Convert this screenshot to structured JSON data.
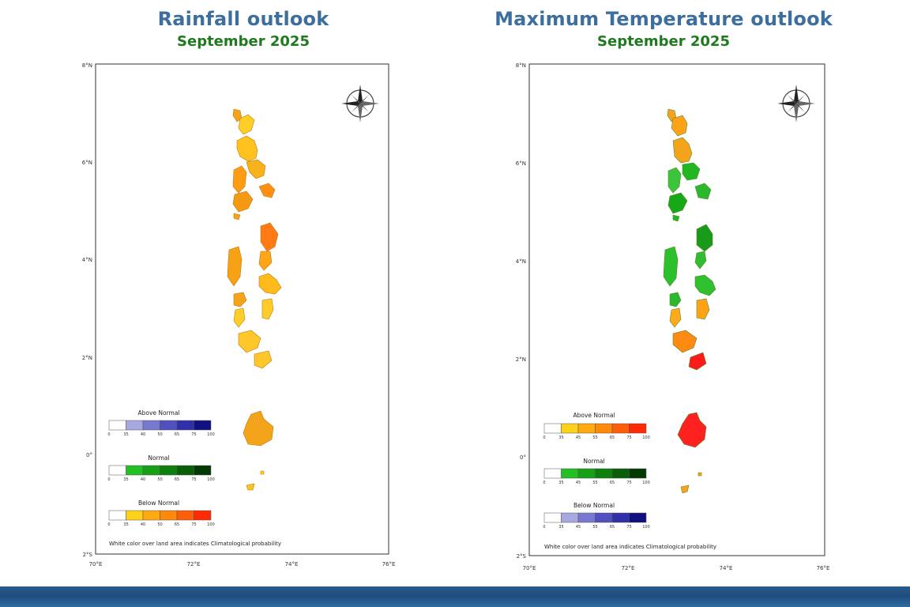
{
  "panels": [
    {
      "title": "Rainfall outlook",
      "subtitle": "September 2025",
      "lat_ticks": [
        "8°N",
        "6°N",
        "4°N",
        "2°N",
        "0°",
        "2°S"
      ],
      "lon_ticks": [
        "70°E",
        "72°E",
        "74°E",
        "76°E"
      ],
      "legends": [
        {
          "title": "Above Normal",
          "colors": [
            "#ffffff",
            "#a8a8e0",
            "#7878d0",
            "#5050bf",
            "#3030a8",
            "#101080"
          ],
          "ticks": [
            "0",
            "35",
            "40",
            "50",
            "65",
            "75",
            "100"
          ]
        },
        {
          "title": "Normal",
          "colors": [
            "#ffffff",
            "#22c022",
            "#16a016",
            "#0d7f0d",
            "#085f08",
            "#033a03"
          ],
          "ticks": [
            "0",
            "35",
            "40",
            "50",
            "65",
            "75",
            "100"
          ]
        },
        {
          "title": "Below Normal",
          "colors": [
            "#ffffff",
            "#ffd21a",
            "#ffaa10",
            "#ff8a0a",
            "#ff5e08",
            "#ff2a06"
          ],
          "ticks": [
            "0",
            "35",
            "40",
            "50",
            "65",
            "75",
            "100"
          ]
        }
      ],
      "note": "White color over land area indicates Climatological probability"
    },
    {
      "title": "Maximum Temperature outlook",
      "subtitle": "September 2025",
      "lat_ticks": [
        "8°N",
        "6°N",
        "4°N",
        "2°N",
        "0°",
        "2°S"
      ],
      "lon_ticks": [
        "70°E",
        "72°E",
        "74°E",
        "76°E"
      ],
      "legends": [
        {
          "title": "Above Normal",
          "colors": [
            "#ffffff",
            "#ffd21a",
            "#ffaa10",
            "#ff8a0a",
            "#ff5e08",
            "#ff2a06"
          ],
          "ticks": [
            "0",
            "35",
            "45",
            "55",
            "65",
            "75",
            "100"
          ]
        },
        {
          "title": "Normal",
          "colors": [
            "#ffffff",
            "#22c022",
            "#16a016",
            "#0d7f0d",
            "#085f08",
            "#033a03"
          ],
          "ticks": [
            "0",
            "35",
            "45",
            "55",
            "65",
            "75",
            "100"
          ]
        },
        {
          "title": "Below Normal",
          "colors": [
            "#ffffff",
            "#a8a8e0",
            "#7878d0",
            "#5050bf",
            "#3030a8",
            "#101080"
          ],
          "ticks": [
            "0",
            "35",
            "45",
            "55",
            "65",
            "75",
            "100"
          ]
        }
      ],
      "note": "White color over land area indicates Climatological probability"
    }
  ],
  "palette": {
    "title_blue": "#3c6e9e",
    "subtitle_green": "#1f7a1f",
    "footer_band": "#1d4d7d"
  },
  "atoll_colors": {
    "rainfall": [
      "#f4a41a",
      "#ffcf26",
      "#ffc21e",
      "#f7b21c",
      "#ff9c14",
      "#f39a12",
      "#ff8f12",
      "#f5a31a",
      "#ff7a14",
      "#ffa516",
      "#f7a214",
      "#ffba1c",
      "#f4a41a",
      "#ffcc2a",
      "#ffd02c",
      "#ffc72a",
      "#ffc72a"
    ],
    "temperature": [
      "#f4a41a",
      "#ffa21a",
      "#f4a41a",
      "#22b622",
      "#3cc43c",
      "#16a816",
      "#2cb82c",
      "#22b622",
      "#1a9a1a",
      "#30bd30",
      "#2cc02c",
      "#30c030",
      "#2cb82c",
      "#ffa216",
      "#ffaa1c",
      "#ff8a12",
      "#ff1a1a",
      "#ff2020"
    ]
  }
}
